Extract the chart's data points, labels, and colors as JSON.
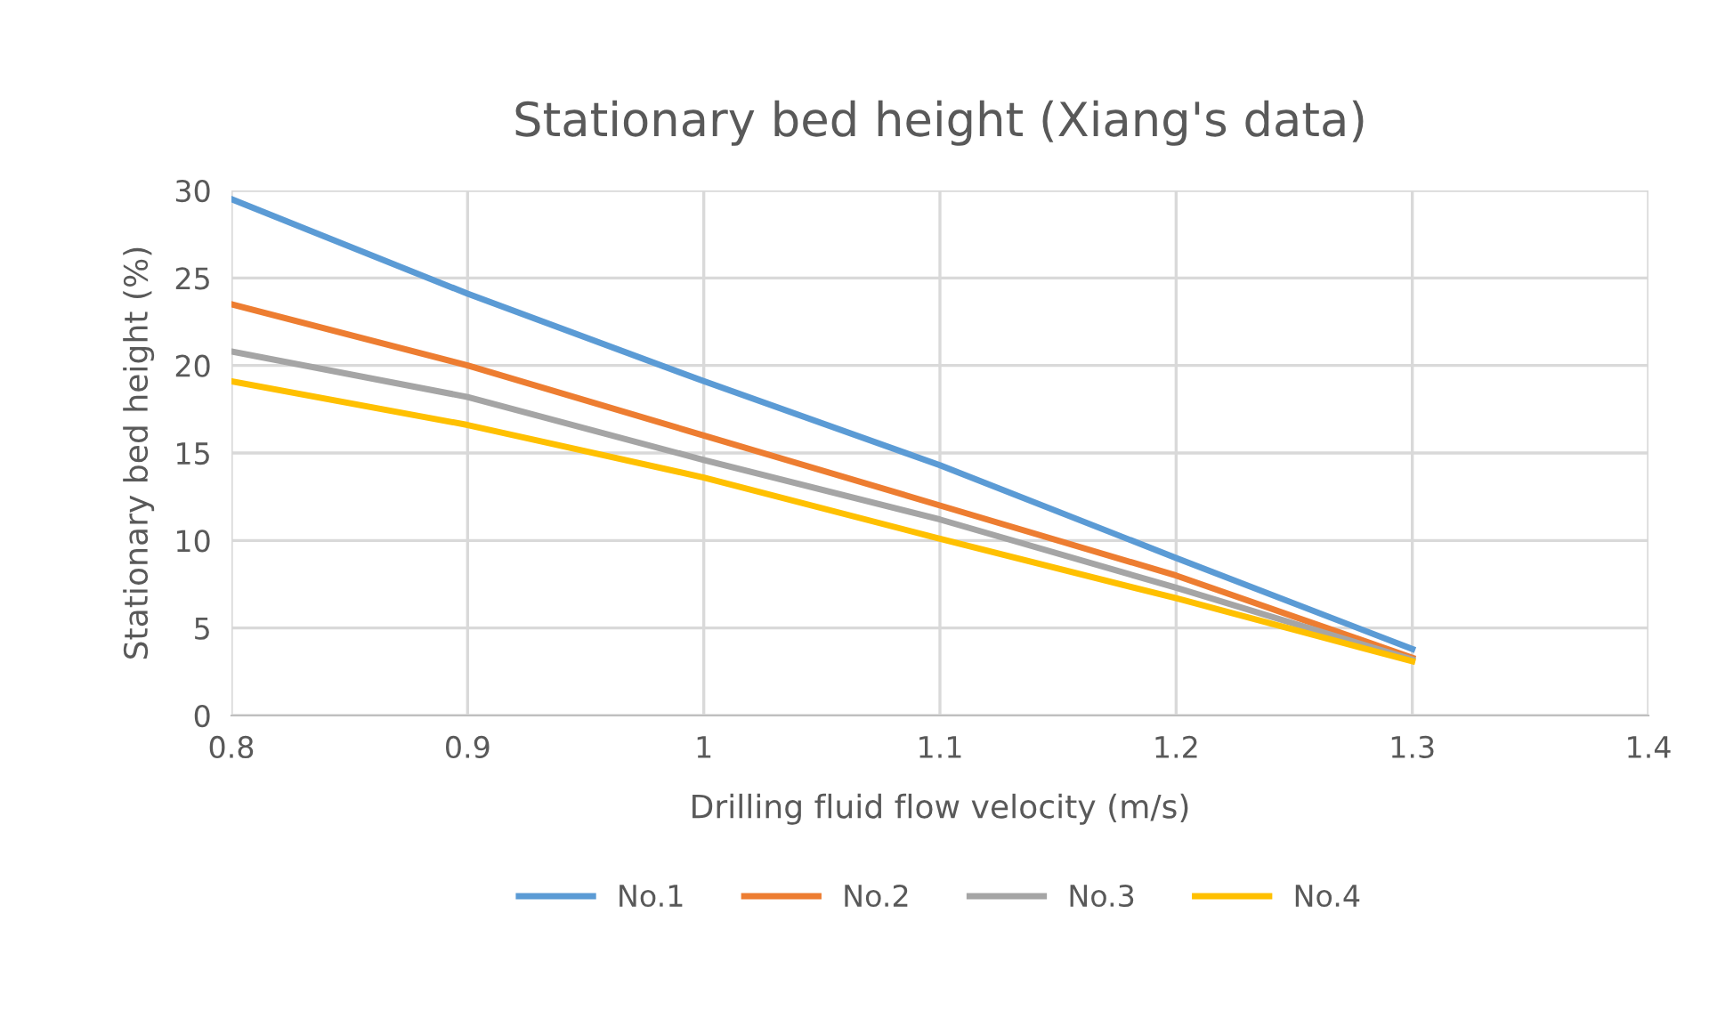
{
  "chart_data": {
    "type": "line",
    "title": "Stationary bed height (Xiang's data)",
    "xlabel": "Drilling fluid flow velocity (m/s)",
    "ylabel": "Stationary bed height (%)",
    "x": [
      0.8,
      0.9,
      1.0,
      1.1,
      1.2,
      1.3
    ],
    "series": [
      {
        "name": "No.1",
        "color": "#5b9bd5",
        "values": [
          29.5,
          24.1,
          19.1,
          14.3,
          9.0,
          3.8
        ]
      },
      {
        "name": "No.2",
        "color": "#ed7d31",
        "values": [
          23.5,
          20.0,
          16.0,
          12.0,
          8.0,
          3.3
        ]
      },
      {
        "name": "No.3",
        "color": "#a5a5a5",
        "values": [
          20.8,
          18.2,
          14.6,
          11.2,
          7.3,
          3.2
        ]
      },
      {
        "name": "No.4",
        "color": "#ffc000",
        "values": [
          19.1,
          16.6,
          13.6,
          10.1,
          6.7,
          3.1
        ]
      }
    ],
    "xlim": [
      0.8,
      1.4
    ],
    "xticks": [
      0.8,
      0.9,
      1,
      1.1,
      1.2,
      1.3,
      1.4
    ],
    "ylim": [
      0,
      30
    ],
    "yticks": [
      0,
      5,
      10,
      15,
      20,
      25,
      30
    ],
    "grid": true,
    "legend": "bottom",
    "marker": "none",
    "line_style": "solid"
  }
}
